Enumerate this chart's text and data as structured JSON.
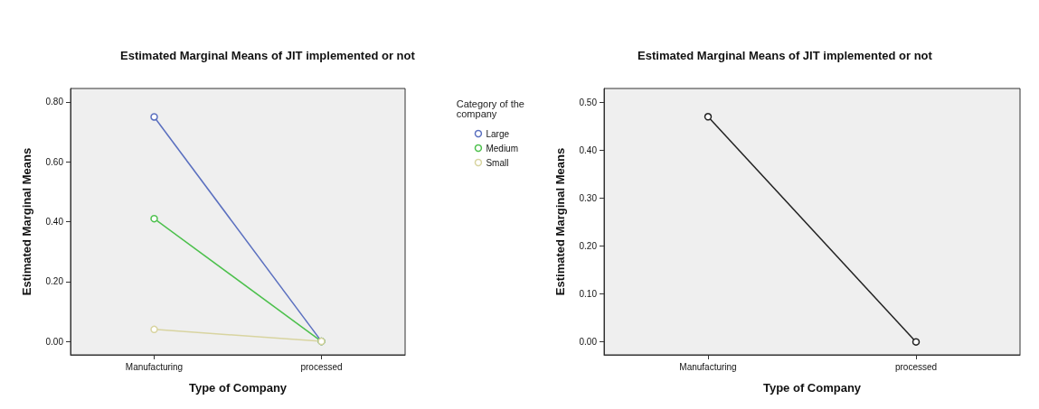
{
  "chart_data": [
    {
      "type": "line",
      "title": "Estimated Marginal Means of JIT implemented or not",
      "xlabel": "Type of Company",
      "ylabel": "Estimated Marginal Means",
      "legend_title": "Category of the company",
      "categories": [
        "Manufacturing",
        "processed"
      ],
      "series": [
        {
          "name": "Large",
          "color": "#5a6fbf",
          "values": [
            0.75,
            0.0
          ]
        },
        {
          "name": "Medium",
          "color": "#4cc04c",
          "values": [
            0.41,
            0.0
          ]
        },
        {
          "name": "Small",
          "color": "#d8d4a0",
          "values": [
            0.04,
            0.0
          ]
        }
      ],
      "ylim": [
        -0.045,
        0.845
      ],
      "yticks": [
        {
          "value": 0,
          "label": "0.00"
        },
        {
          "value": 0.2,
          "label": "0.20"
        },
        {
          "value": 0.4,
          "label": "0.40"
        },
        {
          "value": 0.6,
          "label": "0.60"
        },
        {
          "value": 0.8,
          "label": "0.80"
        }
      ],
      "grid": false,
      "legend": "top right",
      "marker": "circle"
    },
    {
      "type": "line",
      "title": "Estimated Marginal Means of JIT implemented or not",
      "xlabel": "Type of Company",
      "ylabel": "Estimated Marginal Means",
      "categories": [
        "Manufacturing",
        "processed"
      ],
      "series": [
        {
          "color": "#222222",
          "values": [
            0.47,
            0.0
          ]
        }
      ],
      "ylim": [
        -0.027,
        0.529
      ],
      "yticks": [
        {
          "value": 0,
          "label": "0.00"
        },
        {
          "value": 0.1,
          "label": "0.10"
        },
        {
          "value": 0.2,
          "label": "0.20"
        },
        {
          "value": 0.3,
          "label": "0.30"
        },
        {
          "value": 0.4,
          "label": "0.40"
        },
        {
          "value": 0.5,
          "label": "0.50"
        }
      ],
      "grid": false,
      "marker": "circle"
    }
  ]
}
